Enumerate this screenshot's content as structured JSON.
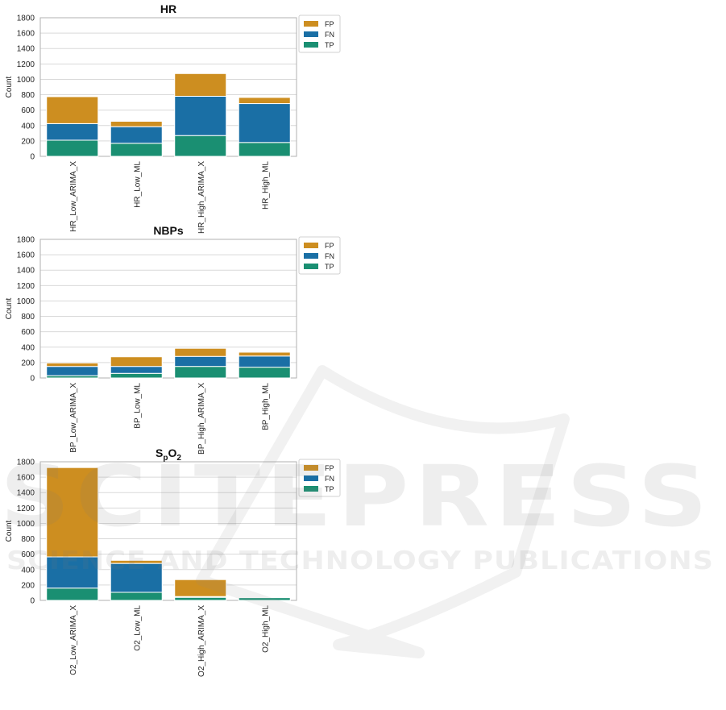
{
  "watermark": {
    "line1": "SCITEPRESS",
    "line2": "SCIENCE AND TECHNOLOGY PUBLICATIONS"
  },
  "colors": {
    "FP": "#cd8e20",
    "FN": "#1a6fa5",
    "TP": "#1a8f72",
    "grid": "#d9d9d9",
    "axis": "#b0b0b0"
  },
  "chart_data": [
    {
      "type": "bar",
      "stacked": true,
      "title": "HR",
      "ylabel": "Count",
      "ylim": [
        0,
        1800
      ],
      "yticks": [
        0,
        200,
        400,
        600,
        800,
        1000,
        1200,
        1400,
        1600,
        1800
      ],
      "grid": true,
      "legend": "top-right outside",
      "categories": [
        "HR_Low_ARIMA_X",
        "HR_Low_ML",
        "HR_High_ARIMA_X",
        "HR_High_ML"
      ],
      "series": [
        {
          "name": "TP",
          "values": [
            210,
            170,
            270,
            180
          ]
        },
        {
          "name": "FN",
          "values": [
            215,
            215,
            510,
            505
          ]
        },
        {
          "name": "FP",
          "values": [
            350,
            70,
            295,
            80
          ]
        }
      ]
    },
    {
      "type": "bar",
      "stacked": true,
      "title": "NBPs",
      "ylabel": "Count",
      "ylim": [
        0,
        1800
      ],
      "yticks": [
        0,
        200,
        400,
        600,
        800,
        1000,
        1200,
        1400,
        1600,
        1800
      ],
      "grid": true,
      "legend": "top-right outside",
      "categories": [
        "BP_Low_ARIMA_X",
        "BP_Low_ML",
        "BP_High_ARIMA_X",
        "BP_High_ML"
      ],
      "series": [
        {
          "name": "TP",
          "values": [
            30,
            60,
            150,
            140
          ]
        },
        {
          "name": "FN",
          "values": [
            120,
            90,
            130,
            145
          ]
        },
        {
          "name": "FP",
          "values": [
            45,
            125,
            105,
            50
          ]
        }
      ]
    },
    {
      "type": "bar",
      "stacked": true,
      "title": "SpO2",
      "title_main": "S",
      "title_sub1": "p",
      "title_mid": "O",
      "title_sub2": "2",
      "ylabel": "Count",
      "ylim": [
        0,
        1800
      ],
      "yticks": [
        0,
        200,
        400,
        600,
        800,
        1000,
        1200,
        1400,
        1600,
        1800
      ],
      "grid": true,
      "legend": "top-right outside",
      "categories": [
        "O2_Low_ARIMA_X",
        "O2_Low_ML",
        "O2_High_ARIMA_X",
        "O2_High_ML"
      ],
      "series": [
        {
          "name": "TP",
          "values": [
            160,
            105,
            40,
            35
          ]
        },
        {
          "name": "FN",
          "values": [
            405,
            375,
            10,
            0
          ]
        },
        {
          "name": "FP",
          "values": [
            1160,
            40,
            220,
            0
          ]
        }
      ]
    }
  ],
  "legend_order": [
    "FP",
    "FN",
    "TP"
  ]
}
